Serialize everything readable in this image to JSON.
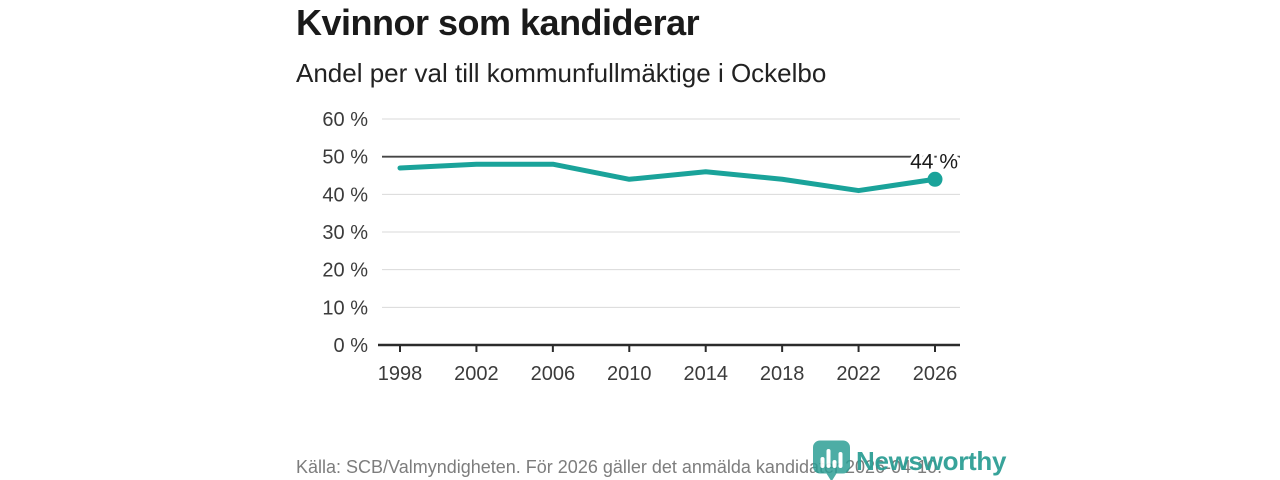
{
  "header": {
    "title": "Kvinnor som kandiderar",
    "subtitle": "Andel per val till kommunfullmäktige i Ockelbo"
  },
  "chart_data": {
    "type": "line",
    "title": "Kvinnor som kandiderar",
    "subtitle": "Andel per val till kommunfullmäktige i Ockelbo",
    "categories": [
      "1998",
      "2002",
      "2006",
      "2010",
      "2014",
      "2018",
      "2022",
      "2026"
    ],
    "values": [
      47,
      48,
      48,
      44,
      46,
      44,
      41,
      44
    ],
    "unit": "%",
    "ylim": [
      0,
      60
    ],
    "ytick_step": 10,
    "ytick_labels": [
      "0 %",
      "10 %",
      "20 %",
      "30 %",
      "40 %",
      "50 %",
      "60 %"
    ],
    "reference_line": 50,
    "end_label": "44 %",
    "grid": true,
    "legend_position": "none"
  },
  "footer": {
    "source": "Källa: SCB/Valmyndigheten. För 2026 gäller det anmälda kandidater 2026-04-10.",
    "brand": "Newsworthy"
  },
  "colors": {
    "accent": "#1aa39a",
    "brand": "#2a9d93",
    "title_text": "#1a1a1a",
    "tick_text": "#3b3b3b",
    "source_text": "#7d7d7d",
    "grid": "#d9d9d9",
    "ref_line": "#454545",
    "axis": "#2b2b2b",
    "label_halo": "#ffffff"
  }
}
